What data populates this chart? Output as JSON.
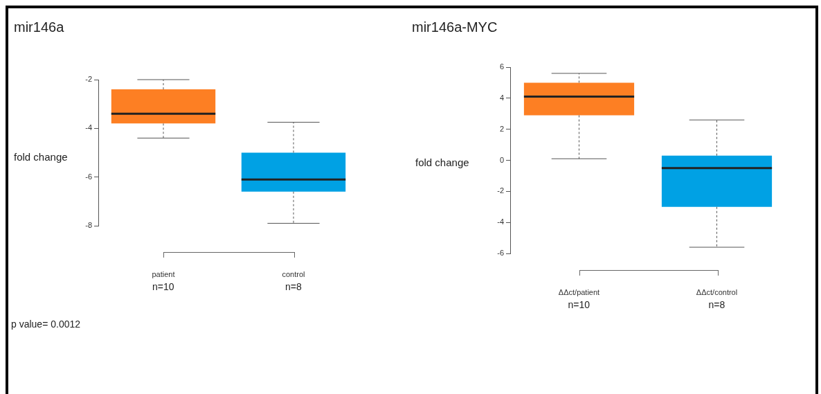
{
  "chart_data": [
    {
      "type": "box",
      "title": "mir146a",
      "ylabel": "fold change",
      "categories": [
        "patient",
        "control"
      ],
      "colors": [
        "#fd7f23",
        "#00a1e4"
      ],
      "boxes": [
        {
          "low": -4.4,
          "q1": -3.8,
          "median": -3.4,
          "q3": -2.4,
          "high": -2.0
        },
        {
          "low": -7.9,
          "q1": -6.6,
          "median": -6.1,
          "q3": -5.0,
          "high": -3.75
        }
      ],
      "ylim": [
        -8,
        -2
      ],
      "yticks": [
        -8,
        -6,
        -4,
        -2
      ],
      "grid": false,
      "annotations": [
        "n=10",
        "n=8",
        "p value= 0.0012"
      ]
    },
    {
      "type": "box",
      "title": "mir146a-MYC",
      "ylabel": "fold change",
      "categories": [
        "ΔΔct/patient",
        "ΔΔct/control"
      ],
      "colors": [
        "#fd7f23",
        "#00a1e4"
      ],
      "boxes": [
        {
          "low": 0.1,
          "q1": 2.9,
          "median": 4.1,
          "q3": 5.0,
          "high": 5.6
        },
        {
          "low": -5.6,
          "q1": -3.0,
          "median": -0.5,
          "q3": 0.3,
          "high": 2.6
        }
      ],
      "ylim": [
        -6,
        6
      ],
      "yticks": [
        -6,
        -4,
        -2,
        0,
        2,
        4,
        6
      ],
      "grid": false,
      "annotations": [
        "n=10",
        "n=8"
      ]
    }
  ]
}
